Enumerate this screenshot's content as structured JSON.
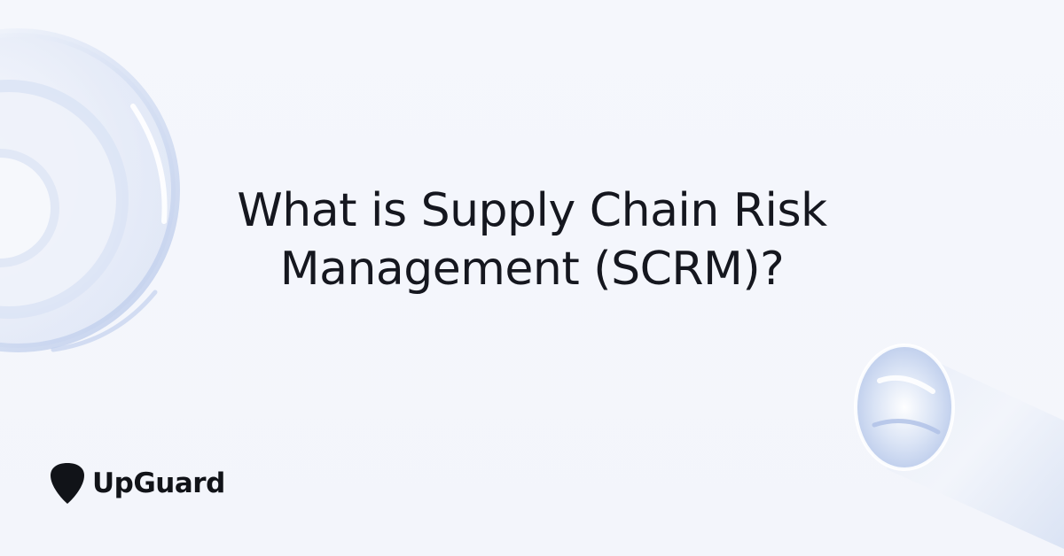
{
  "headline": {
    "line1": "What is Supply Chain Risk",
    "line2": "Management (SCRM)?"
  },
  "brand": {
    "name": "UpGuard",
    "icon": "guitar-pick-icon"
  },
  "decorations": {
    "left": "glass-rings-icon",
    "right": "glass-cylinder-icon"
  },
  "colors": {
    "background": "#f4f6fb",
    "text": "#15171f",
    "logo": "#111318",
    "glass_tint": "#c9d6f0"
  }
}
